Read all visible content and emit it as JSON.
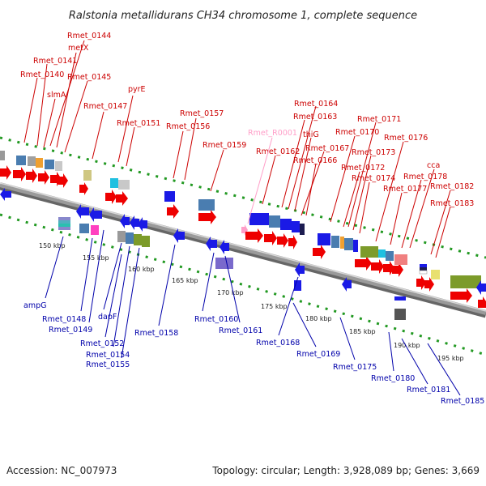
{
  "title": "Ralstonia metallidurans CH34 chromosome 1, complete sequence",
  "footer": {
    "accession": "Accession: NC_007973",
    "summary": "Topology: circular; Length: 3,928,089 bp; Genes: 3,669"
  },
  "colors": {
    "forward_label": "#cc0000",
    "reverse_label": "#0000aa",
    "rna_label": "#ff9ec8",
    "forward_gene": "#ee0000",
    "reverse_gene": "#1a1ae6",
    "tick": "#229922",
    "backbone": "#888888"
  },
  "scale_labels": [
    "150 kbp",
    "155 kbp",
    "160 kbp",
    "165 kbp",
    "170 kbp",
    "175 kbp",
    "180 kbp",
    "185 kbp",
    "190 kbp",
    "195 kbp"
  ],
  "forward_labels": [
    {
      "text": "Rmet_0144"
    },
    {
      "text": "metX"
    },
    {
      "text": "Rmet_0141"
    },
    {
      "text": "Rmet_0140"
    },
    {
      "text": "Rmet_0145"
    },
    {
      "text": "slmA"
    },
    {
      "text": "pyrE"
    },
    {
      "text": "Rmet_0147"
    },
    {
      "text": "Rmet_0151"
    },
    {
      "text": "Rmet_0157"
    },
    {
      "text": "Rmet_0156"
    },
    {
      "text": "Rmet_0159"
    },
    {
      "text": "Rmet_0164"
    },
    {
      "text": "Rmet_0163"
    },
    {
      "text": "thiG"
    },
    {
      "text": "Rmet_0162"
    },
    {
      "text": "Rmet_0167"
    },
    {
      "text": "Rmet_0166"
    },
    {
      "text": "Rmet_0171"
    },
    {
      "text": "Rmet_0170"
    },
    {
      "text": "Rmet_0173"
    },
    {
      "text": "Rmet_0172"
    },
    {
      "text": "Rmet_0174"
    },
    {
      "text": "Rmet_0176"
    },
    {
      "text": "cca"
    },
    {
      "text": "Rmet_0178"
    },
    {
      "text": "Rmet_0177"
    },
    {
      "text": "Rmet_0182"
    },
    {
      "text": "Rmet_0183"
    }
  ],
  "rna_labels": [
    {
      "text": "Rmet_R0001"
    }
  ],
  "reverse_labels": [
    {
      "text": "ampG"
    },
    {
      "text": "Rmet_0148"
    },
    {
      "text": "Rmet_0149"
    },
    {
      "text": "dapF"
    },
    {
      "text": "Rmet_0152"
    },
    {
      "text": "Rmet_0154"
    },
    {
      "text": "Rmet_0155"
    },
    {
      "text": "Rmet_0158"
    },
    {
      "text": "Rmet_0160"
    },
    {
      "text": "Rmet_0161"
    },
    {
      "text": "Rmet_0168"
    },
    {
      "text": "Rmet_0169"
    },
    {
      "text": "Rmet_0175"
    },
    {
      "text": "Rmet_0180"
    },
    {
      "text": "Rmet_0181"
    },
    {
      "text": "Rmet_0185"
    }
  ]
}
